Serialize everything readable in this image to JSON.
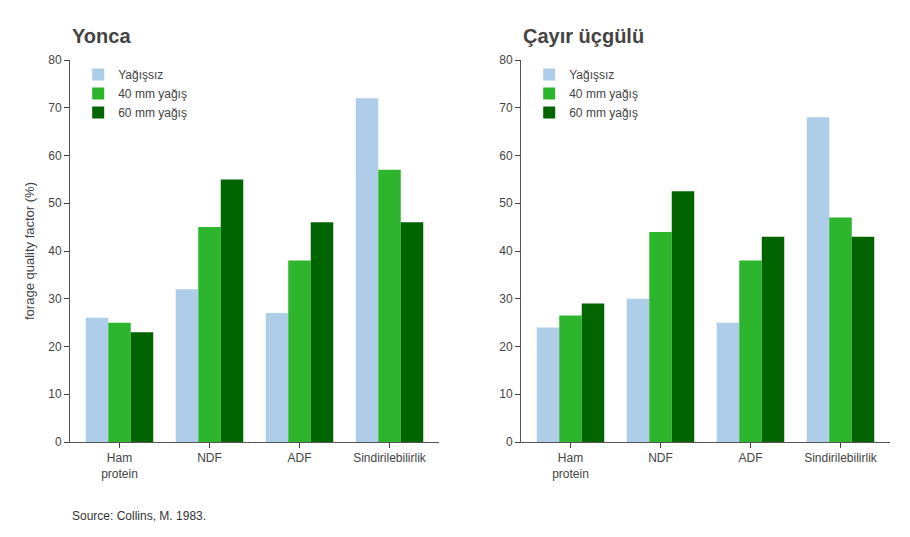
{
  "chart_data": [
    {
      "type": "bar",
      "title": "Yonca",
      "categories": [
        "Ham\nprotein",
        "NDF",
        "ADF",
        "Sindirilebilirlik"
      ],
      "series": [
        {
          "name": "Yağışsız",
          "color": "#aecde8",
          "values": [
            26,
            32,
            27,
            72
          ]
        },
        {
          "name": "40 mm yağış",
          "color": "#2db52d",
          "values": [
            25,
            45,
            38,
            57
          ]
        },
        {
          "name": "60 mm yağış",
          "color": "#006400",
          "values": [
            23,
            55,
            46,
            46
          ]
        }
      ],
      "ylabel": "forage quality factor (%)",
      "ylim": [
        0,
        80
      ],
      "yticks": [
        0,
        10,
        20,
        30,
        40,
        50,
        60,
        70,
        80
      ],
      "grid": false,
      "legend": "upper left",
      "annotations": [
        "Source: Collins, M. 1983."
      ]
    },
    {
      "type": "bar",
      "title": "Çayır üçgülü",
      "categories": [
        "Ham\nprotein",
        "NDF",
        "ADF",
        "Sindirilebilirlik"
      ],
      "series": [
        {
          "name": "Yağışsız",
          "color": "#aecde8",
          "values": [
            24,
            30,
            25,
            68
          ]
        },
        {
          "name": "40 mm yağış",
          "color": "#2db52d",
          "values": [
            26.5,
            44,
            38,
            47
          ]
        },
        {
          "name": "60 mm yağış",
          "color": "#006400",
          "values": [
            29,
            52.5,
            43,
            43
          ]
        }
      ],
      "ylim": [
        0,
        80
      ],
      "yticks": [
        0,
        10,
        20,
        30,
        40,
        50,
        60,
        70,
        80
      ],
      "grid": false,
      "legend": "upper left"
    }
  ]
}
